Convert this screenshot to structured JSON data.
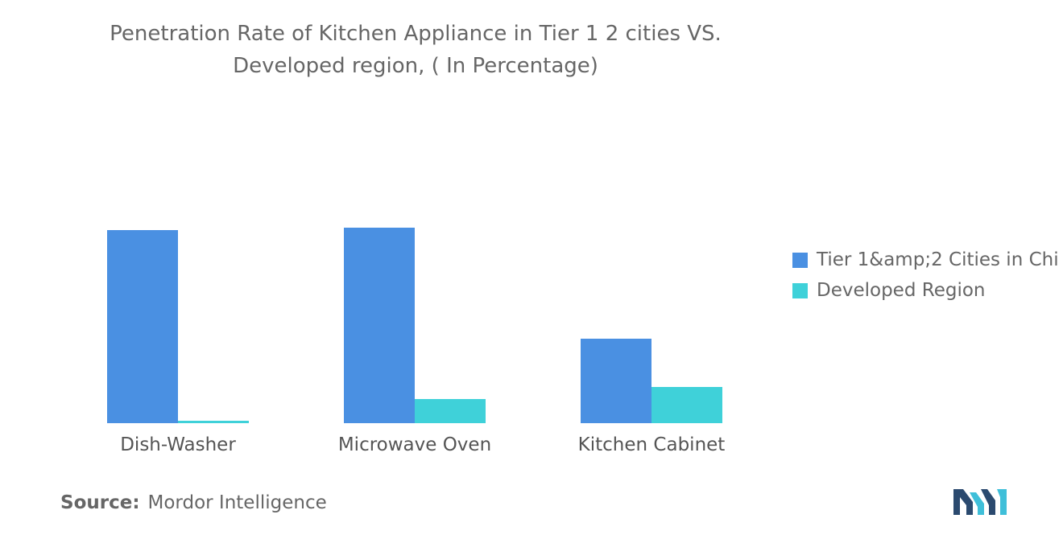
{
  "title_lines": [
    "Penetration Rate of Kitchen Appliance in Tier 1 2 cities VS.",
    "Developed region, ( In Percentage)"
  ],
  "legend": [
    {
      "label": "Tier 1&amp;2 Cities in Chi",
      "color": "#4a90e2"
    },
    {
      "label": "Developed Region",
      "color": "#3fd1d9"
    }
  ],
  "source": {
    "label": "Source:",
    "value": "Mordor Intelligence"
  },
  "chart_data": {
    "type": "bar",
    "categories": [
      "Dish-Washer",
      "Microwave Oven",
      "Kitchen Cabinet"
    ],
    "series": [
      {
        "name": "Tier 1&amp;2 Cities in Chi",
        "values": [
          80,
          81,
          35
        ],
        "color": "#4a90e2"
      },
      {
        "name": "Developed Region",
        "values": [
          1,
          10,
          15
        ],
        "color": "#3fd1d9"
      }
    ],
    "ylim": [
      0,
      100
    ],
    "grid": false,
    "legend_position": "right"
  }
}
